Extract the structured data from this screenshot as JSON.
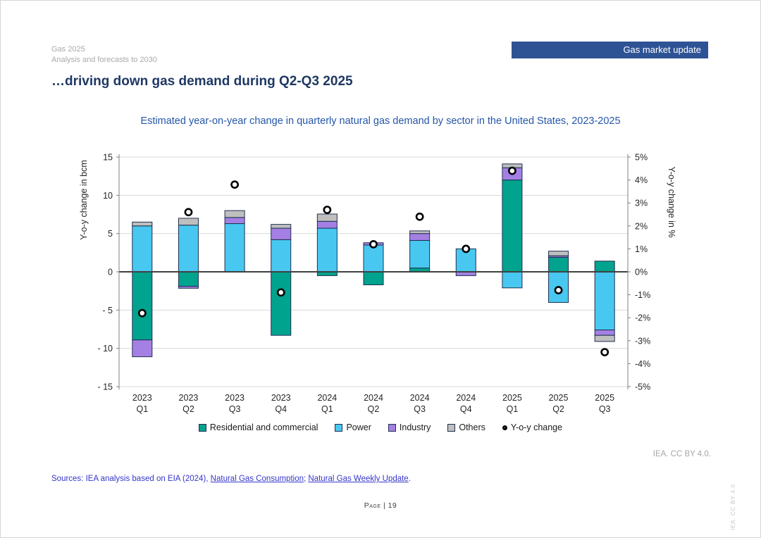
{
  "header": {
    "report_title": "Gas 2025",
    "report_subtitle": "Analysis and forecasts to 2030",
    "badge": "Gas market update"
  },
  "slide": {
    "title": "…driving down gas demand during Q2-Q3 2025"
  },
  "chart_data": {
    "type": "bar",
    "stacked": true,
    "title": "Estimated year-on-year change in quarterly natural gas demand by sector in the United States, 2023-2025",
    "categories": [
      "2023 Q1",
      "2023 Q2",
      "2023 Q3",
      "2023 Q4",
      "2024 Q1",
      "2024 Q2",
      "2024 Q3",
      "2024 Q4",
      "2025 Q1",
      "2025 Q2",
      "2025 Q3"
    ],
    "series": [
      {
        "key": "res_com",
        "name": "Residential and commercial",
        "color": "#00A38E",
        "values": [
          -8.9,
          -1.9,
          0,
          -8.3,
          -0.5,
          -1.7,
          0.5,
          0,
          12.0,
          1.9,
          1.4
        ]
      },
      {
        "key": "power",
        "name": "Power",
        "color": "#48C8F0",
        "values": [
          6.0,
          6.1,
          6.3,
          4.2,
          5.7,
          3.5,
          3.6,
          3.0,
          -2.1,
          -4.0,
          -7.6
        ]
      },
      {
        "key": "industry",
        "name": "Industry",
        "color": "#A580E4",
        "values": [
          -2.2,
          -0.25,
          0.8,
          1.5,
          0.9,
          0.3,
          0.9,
          -0.5,
          1.6,
          0.2,
          -0.7
        ]
      },
      {
        "key": "others",
        "name": "Others",
        "color": "#BFBFBF",
        "values": [
          0.5,
          0.9,
          0.9,
          0.5,
          0.95,
          0,
          0.35,
          0,
          0.5,
          0.6,
          -0.8
        ]
      }
    ],
    "marker_series": {
      "name": "Y-o-y change",
      "values_pct": [
        -1.8,
        2.6,
        3.8,
        -0.9,
        2.7,
        1.2,
        2.4,
        1.0,
        4.4,
        -0.8,
        -3.5
      ],
      "fill": "#ffffff",
      "ring": "#000000"
    },
    "left_axis": {
      "label": "Y-o-y change in bcm",
      "range": [
        -15,
        15
      ],
      "ticks": [
        {
          "v": 15,
          "label": "15"
        },
        {
          "v": 10,
          "label": "10"
        },
        {
          "v": 5,
          "label": "5"
        },
        {
          "v": 0,
          "label": "0"
        },
        {
          "v": -5,
          "label": "- 5"
        },
        {
          "v": -10,
          "label": "- 10"
        },
        {
          "v": -15,
          "label": "- 15"
        }
      ]
    },
    "right_axis": {
      "label": "Y-o-y change in %",
      "range": [
        -5,
        5
      ],
      "ticks": [
        {
          "v": 5,
          "label": "5%"
        },
        {
          "v": 4,
          "label": "4%"
        },
        {
          "v": 3,
          "label": "3%"
        },
        {
          "v": 2,
          "label": "2%"
        },
        {
          "v": 1,
          "label": "1%"
        },
        {
          "v": 0,
          "label": "0%"
        },
        {
          "v": -1,
          "label": "-1%"
        },
        {
          "v": -2,
          "label": "-2%"
        },
        {
          "v": -3,
          "label": "-3%"
        },
        {
          "v": -4,
          "label": "-4%"
        },
        {
          "v": -5,
          "label": "-5%"
        }
      ]
    },
    "grid": true,
    "colors": {
      "gridline": "#d9d9d9",
      "zero_line": "#404040",
      "axis_line": "#808080",
      "bar_border": "#1f3050"
    }
  },
  "footer": {
    "license": "IEA. CC BY 4.0.",
    "license_vertical": "IEA. CC BY 4.0",
    "sources_prefix": "Sources: IEA analysis based on EIA (2024), ",
    "link1": "Natural Gas Consumption",
    "separator": "; ",
    "link2": "Natural Gas Weekly Update",
    "period": ".",
    "page_label": "Page | 19"
  }
}
